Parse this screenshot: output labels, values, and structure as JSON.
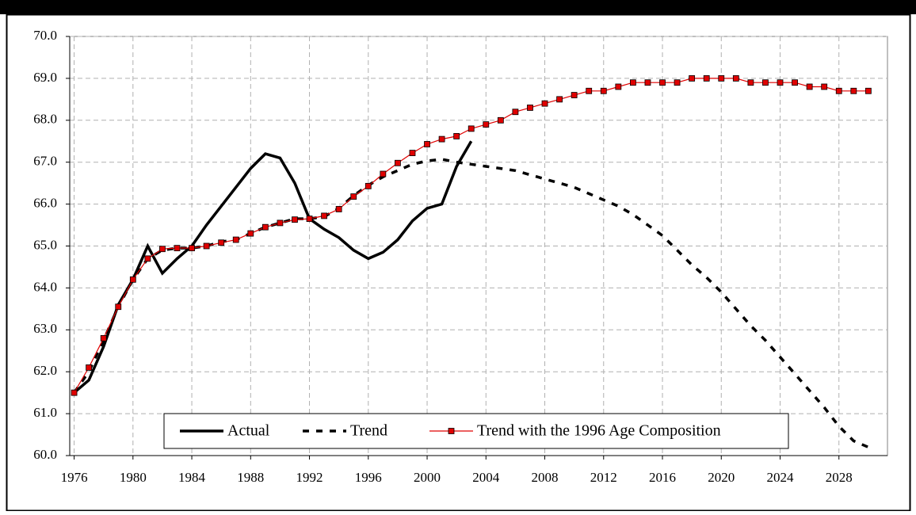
{
  "chart_data": {
    "type": "line",
    "xlim": [
      1975.7,
      2031.3
    ],
    "xticks": [
      1976,
      1980,
      1984,
      1988,
      1992,
      1996,
      2000,
      2004,
      2008,
      2012,
      2016,
      2020,
      2024,
      2028
    ],
    "ylim": [
      60,
      70
    ],
    "yticks": [
      {
        "value": 60,
        "label": "60.0"
      },
      {
        "value": 61,
        "label": "61.0"
      },
      {
        "value": 62,
        "label": "62.0"
      },
      {
        "value": 63,
        "label": "63.0"
      },
      {
        "value": 64,
        "label": "64.0"
      },
      {
        "value": 65,
        "label": "65.0"
      },
      {
        "value": 66,
        "label": "66.0"
      },
      {
        "value": 67,
        "label": "67.0"
      },
      {
        "value": 68,
        "label": "68.0"
      },
      {
        "value": 69,
        "label": "69.0"
      },
      {
        "value": 70,
        "label": "70.0"
      }
    ],
    "grid": true,
    "legend": "bottom",
    "series": [
      {
        "name": "Actual",
        "color": "#000000",
        "style": "solid",
        "x": [
          1976,
          1977,
          1978,
          1979,
          1980,
          1981,
          1982,
          1983,
          1984,
          1985,
          1986,
          1987,
          1988,
          1989,
          1990,
          1991,
          1992,
          1993,
          1994,
          1995,
          1996,
          1997,
          1998,
          1999,
          2000,
          2001,
          2002,
          2003
        ],
        "values": [
          61.5,
          61.8,
          62.6,
          63.6,
          64.2,
          65.0,
          64.35,
          64.7,
          65.0,
          65.5,
          65.95,
          66.4,
          66.85,
          67.2,
          67.1,
          66.5,
          65.65,
          65.4,
          65.2,
          64.9,
          64.7,
          64.85,
          65.15,
          65.6,
          65.9,
          66.0,
          66.9,
          67.5
        ]
      },
      {
        "name": "Trend",
        "color": "#000000",
        "style": "dash",
        "x": [
          1976,
          1977,
          1978,
          1979,
          1980,
          1981,
          1982,
          1983,
          1984,
          1985,
          1986,
          1987,
          1988,
          1989,
          1990,
          1991,
          1992,
          1993,
          1994,
          1995,
          1996,
          1997,
          1998,
          1999,
          2000,
          2001,
          2002,
          2003,
          2004,
          2005,
          2006,
          2007,
          2008,
          2009,
          2010,
          2011,
          2012,
          2013,
          2014,
          2015,
          2016,
          2017,
          2018,
          2019,
          2020,
          2021,
          2022,
          2023,
          2024,
          2025,
          2026,
          2027,
          2028,
          2029,
          2030
        ],
        "values": [
          61.5,
          62.0,
          62.75,
          63.55,
          64.2,
          64.7,
          64.9,
          64.95,
          64.95,
          65.0,
          65.1,
          65.15,
          65.3,
          65.45,
          65.55,
          65.65,
          65.65,
          65.7,
          65.9,
          66.2,
          66.45,
          66.65,
          66.8,
          66.95,
          67.03,
          67.07,
          67.0,
          66.95,
          66.9,
          66.85,
          66.8,
          66.7,
          66.6,
          66.5,
          66.4,
          66.25,
          66.1,
          65.95,
          65.75,
          65.5,
          65.25,
          64.9,
          64.55,
          64.25,
          63.9,
          63.5,
          63.1,
          62.75,
          62.35,
          61.95,
          61.55,
          61.15,
          60.7,
          60.35,
          60.2
        ]
      },
      {
        "name": "Trend with the 1996 Age Composition",
        "color": "#e00000",
        "style": "marker",
        "x": [
          1976,
          1977,
          1978,
          1979,
          1980,
          1981,
          1982,
          1983,
          1984,
          1985,
          1986,
          1987,
          1988,
          1989,
          1990,
          1991,
          1992,
          1993,
          1994,
          1995,
          1996,
          1997,
          1998,
          1999,
          2000,
          2001,
          2002,
          2003,
          2004,
          2005,
          2006,
          2007,
          2008,
          2009,
          2010,
          2011,
          2012,
          2013,
          2014,
          2015,
          2016,
          2017,
          2018,
          2019,
          2020,
          2021,
          2022,
          2023,
          2024,
          2025,
          2026,
          2027,
          2028,
          2029,
          2030
        ],
        "values": [
          61.5,
          62.1,
          62.8,
          63.55,
          64.2,
          64.7,
          64.93,
          64.95,
          64.95,
          65.0,
          65.08,
          65.15,
          65.3,
          65.45,
          65.55,
          65.63,
          65.65,
          65.72,
          65.88,
          66.18,
          66.43,
          66.72,
          66.98,
          67.22,
          67.43,
          67.55,
          67.62,
          67.8,
          67.9,
          68.0,
          68.2,
          68.3,
          68.4,
          68.5,
          68.6,
          68.7,
          68.7,
          68.8,
          68.9,
          68.9,
          68.9,
          68.9,
          69.0,
          69.0,
          69.0,
          69.0,
          68.9,
          68.9,
          68.9,
          68.9,
          68.8,
          68.8,
          68.7,
          68.7,
          68.7
        ]
      }
    ]
  }
}
